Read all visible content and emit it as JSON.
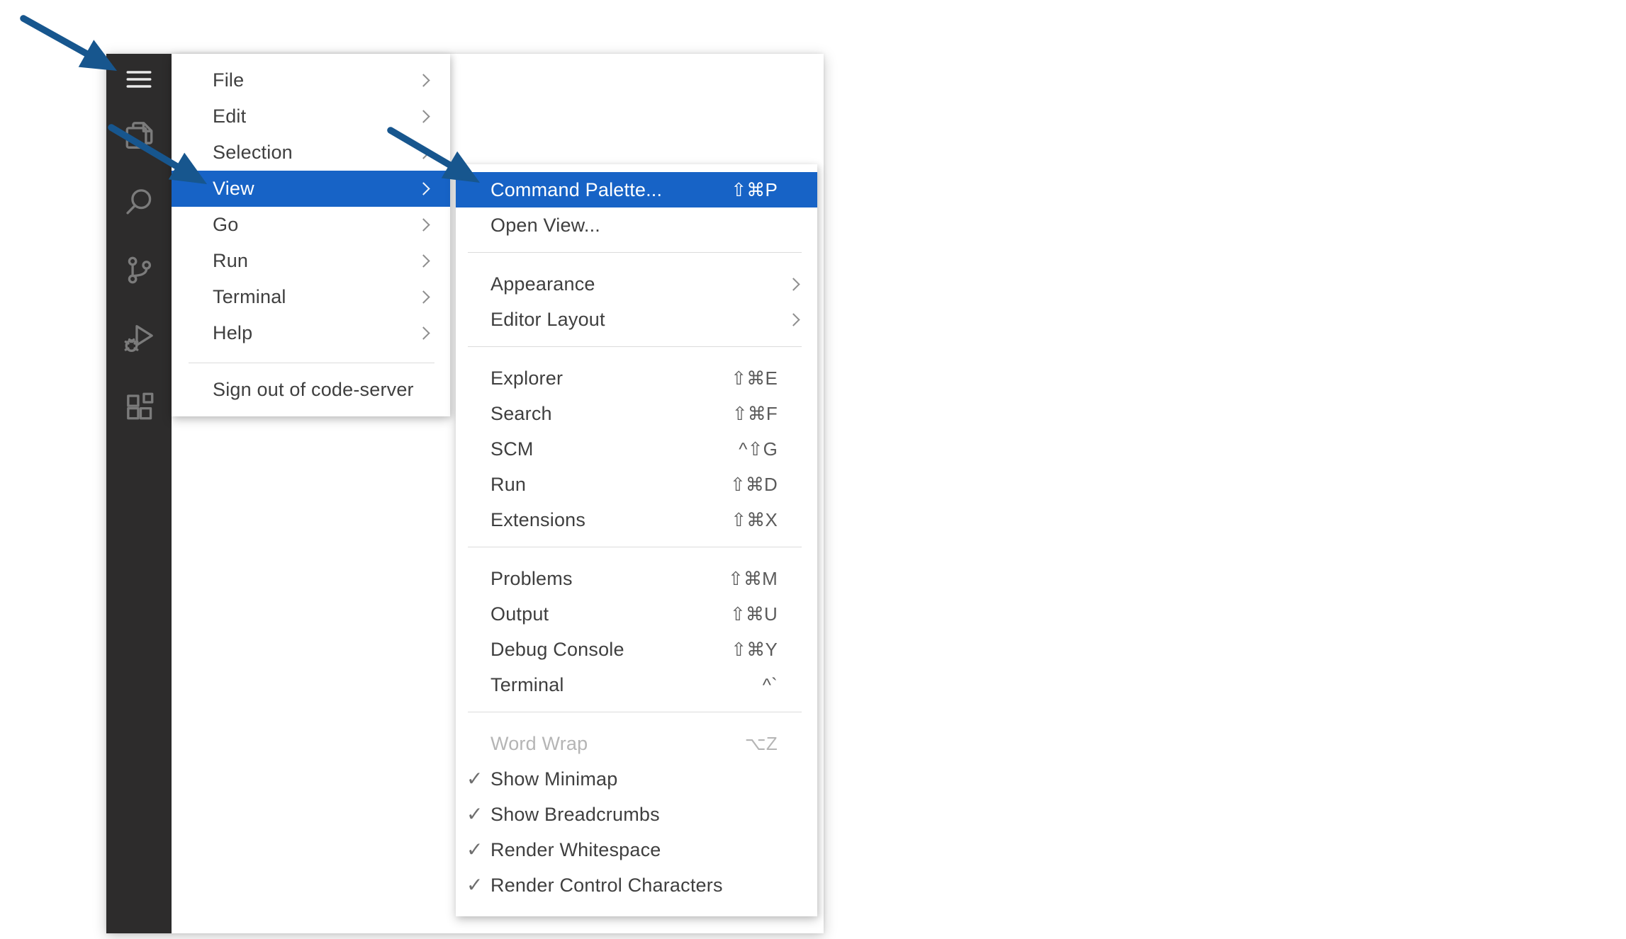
{
  "app": {
    "name": "code-server"
  },
  "colors": {
    "page_bg": "#ffffff",
    "editor_bg": "#ffffff",
    "activity_bar_bg": "#2d2c2c",
    "icon_gray": "#7b7b7b",
    "icon_active": "#e9e9e9",
    "menu_bg": "#ffffff",
    "text": "#3f3f3f",
    "shortcut_text": "#5b5b5b",
    "disabled_text": "#b5b5b5",
    "separator": "#dcdcdc",
    "chevron": "#8f8f8f",
    "check": "#6f6f6f",
    "highlight_bg": "#1763c6",
    "highlight_text": "#ffffff",
    "arrow_blue": "#17568e"
  },
  "glyphs": {
    "check": "✓"
  },
  "activity_bar": {
    "items": [
      {
        "button": "menu-button",
        "icon": "menu-icon",
        "active": true
      },
      {
        "button": "explorer-button",
        "icon": "explorer-icon"
      },
      {
        "button": "search-button",
        "icon": "search-icon"
      },
      {
        "button": "source-control-button",
        "icon": "source-control-icon"
      },
      {
        "button": "run-debug-button",
        "icon": "run-debug-icon"
      },
      {
        "button": "extensions-button",
        "icon": "extensions-icon"
      }
    ]
  },
  "main_menu": {
    "items": [
      {
        "label": "File",
        "submenu": true
      },
      {
        "label": "Edit",
        "submenu": true
      },
      {
        "label": "Selection",
        "submenu": true
      },
      {
        "label": "View",
        "submenu": true,
        "highlighted": true
      },
      {
        "label": "Go",
        "submenu": true
      },
      {
        "label": "Run",
        "submenu": true
      },
      {
        "label": "Terminal",
        "submenu": true
      },
      {
        "label": "Help",
        "submenu": true
      },
      {
        "type": "separator"
      },
      {
        "label": "Sign out of code-server"
      }
    ]
  },
  "view_submenu": {
    "items": [
      {
        "label": "Command Palette...",
        "shortcut": "⇧⌘P",
        "highlighted": true
      },
      {
        "label": "Open View..."
      },
      {
        "type": "separator"
      },
      {
        "label": "Appearance",
        "submenu": true
      },
      {
        "label": "Editor Layout",
        "submenu": true
      },
      {
        "type": "separator"
      },
      {
        "label": "Explorer",
        "shortcut": "⇧⌘E"
      },
      {
        "label": "Search",
        "shortcut": "⇧⌘F"
      },
      {
        "label": "SCM",
        "shortcut": "^⇧G"
      },
      {
        "label": "Run",
        "shortcut": "⇧⌘D"
      },
      {
        "label": "Extensions",
        "shortcut": "⇧⌘X"
      },
      {
        "type": "separator"
      },
      {
        "label": "Problems",
        "shortcut": "⇧⌘M"
      },
      {
        "label": "Output",
        "shortcut": "⇧⌘U"
      },
      {
        "label": "Debug Console",
        "shortcut": "⇧⌘Y"
      },
      {
        "label": "Terminal",
        "shortcut": "^`"
      },
      {
        "type": "separator"
      },
      {
        "label": "Word Wrap",
        "shortcut": "⌥Z",
        "disabled": true
      },
      {
        "label": "Show Minimap",
        "checked": true
      },
      {
        "label": "Show Breadcrumbs",
        "checked": true
      },
      {
        "label": "Render Whitespace",
        "checked": true
      },
      {
        "label": "Render Control Characters",
        "checked": true
      }
    ]
  },
  "annotations": {
    "arrows": [
      {
        "target": "menu-button"
      },
      {
        "target": "view-menu-item"
      },
      {
        "target": "command-palette-menu-item"
      }
    ]
  }
}
